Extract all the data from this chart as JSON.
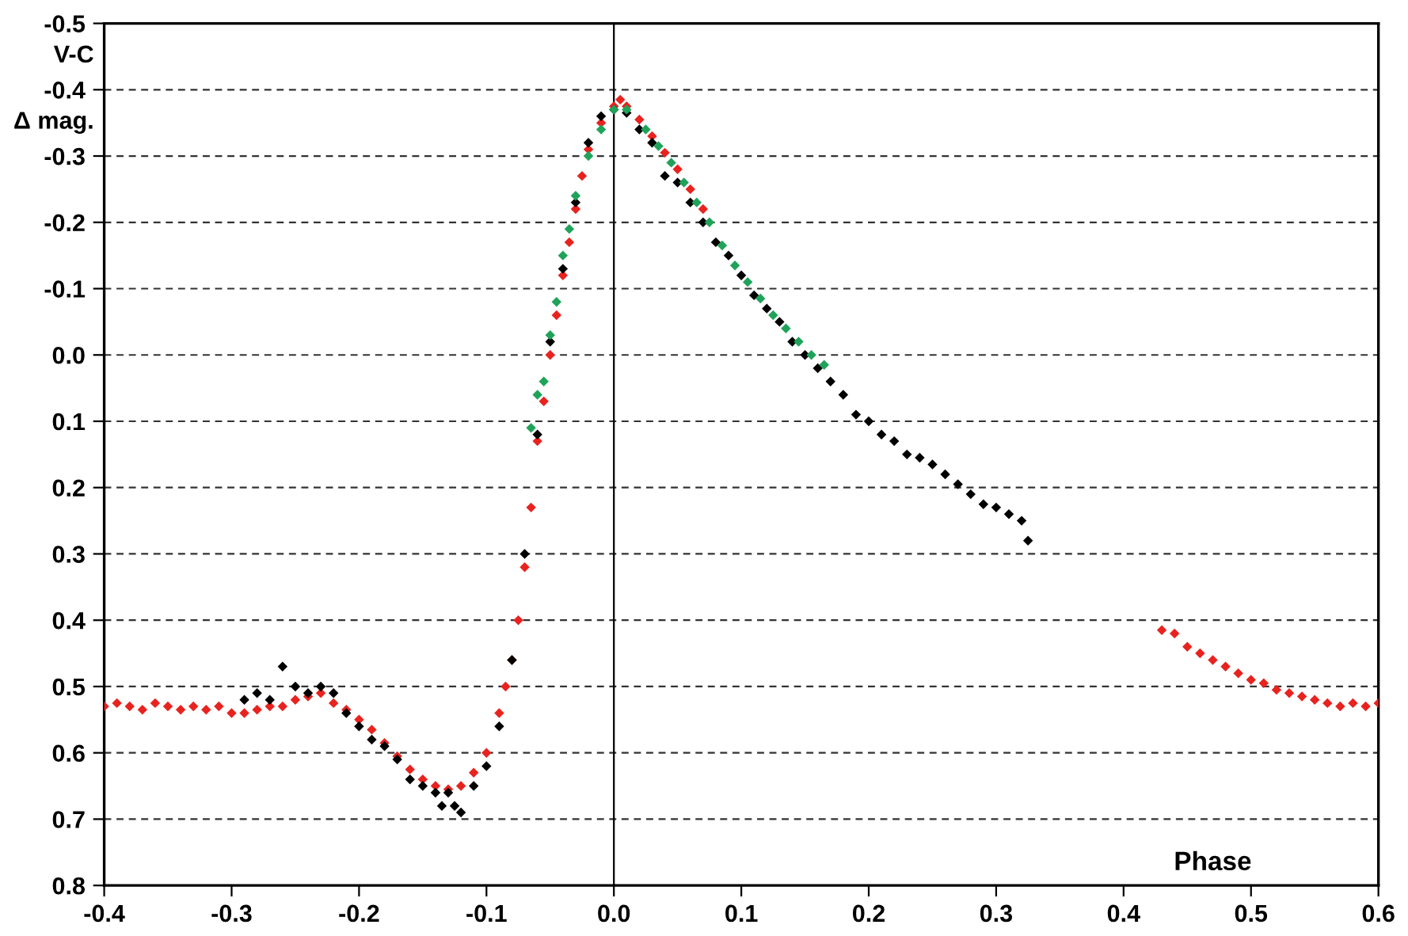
{
  "chart_data": {
    "type": "scatter",
    "xlabel": "Phase",
    "ylabel": "V-C\nΔ mag.",
    "xlim": [
      -0.4,
      0.6
    ],
    "xticks": [
      {
        "value": -0.4,
        "label": "-0.4"
      },
      {
        "value": -0.3,
        "label": "-0.3"
      },
      {
        "value": -0.2,
        "label": "-0.2"
      },
      {
        "value": -0.1,
        "label": "-0.1"
      },
      {
        "value": 0.0,
        "label": "0.0"
      },
      {
        "value": 0.1,
        "label": "0.1"
      },
      {
        "value": 0.2,
        "label": "0.2"
      },
      {
        "value": 0.3,
        "label": "0.3"
      },
      {
        "value": 0.4,
        "label": "0.4"
      },
      {
        "value": 0.5,
        "label": "0.5"
      },
      {
        "value": 0.6,
        "label": "0.6"
      }
    ],
    "ylim": [
      0.8,
      -0.5
    ],
    "yticks": [
      {
        "value": -0.5,
        "label": "-0.5"
      },
      {
        "value": -0.4,
        "label": "-0.4"
      },
      {
        "value": -0.3,
        "label": "-0.3"
      },
      {
        "value": -0.2,
        "label": "-0.2"
      },
      {
        "value": -0.1,
        "label": "-0.1"
      },
      {
        "value": 0.0,
        "label": "0.0"
      },
      {
        "value": 0.1,
        "label": "0.1"
      },
      {
        "value": 0.2,
        "label": "0.2"
      },
      {
        "value": 0.3,
        "label": "0.3"
      },
      {
        "value": 0.4,
        "label": "0.4"
      },
      {
        "value": 0.5,
        "label": "0.5"
      },
      {
        "value": 0.6,
        "label": "0.6"
      },
      {
        "value": 0.7,
        "label": "0.7"
      },
      {
        "value": 0.8,
        "label": "0.8"
      }
    ],
    "grid": "y",
    "marker": "diamond",
    "ref_lines": [
      {
        "axis": "x",
        "value": 0.0,
        "color": "#000000",
        "line_style": "solid"
      }
    ],
    "series": [
      {
        "color": "#e8231f",
        "x": [
          -0.4,
          -0.39,
          -0.38,
          -0.37,
          -0.36,
          -0.35,
          -0.34,
          -0.33,
          -0.32,
          -0.31,
          -0.3,
          -0.29,
          -0.28,
          -0.27,
          -0.26,
          -0.25,
          -0.24,
          -0.23,
          -0.22,
          -0.21,
          -0.2,
          -0.19,
          -0.18,
          -0.17,
          -0.16,
          -0.15,
          -0.14,
          -0.13,
          -0.12,
          -0.11,
          -0.1,
          -0.09,
          -0.085,
          -0.08,
          -0.075,
          -0.07,
          -0.065,
          -0.06,
          -0.055,
          -0.05,
          -0.045,
          -0.04,
          -0.035,
          -0.03,
          -0.025,
          -0.02,
          -0.01,
          0.0,
          0.005,
          0.01,
          0.02,
          0.03,
          0.04,
          0.05,
          0.06,
          0.07,
          0.43,
          0.44,
          0.45,
          0.46,
          0.47,
          0.48,
          0.49,
          0.5,
          0.51,
          0.52,
          0.53,
          0.54,
          0.55,
          0.56,
          0.57,
          0.58,
          0.59,
          0.6
        ],
        "values": [
          0.53,
          0.525,
          0.53,
          0.535,
          0.525,
          0.53,
          0.535,
          0.53,
          0.535,
          0.53,
          0.54,
          0.54,
          0.535,
          0.53,
          0.53,
          0.52,
          0.515,
          0.51,
          0.525,
          0.535,
          0.55,
          0.565,
          0.585,
          0.605,
          0.625,
          0.64,
          0.65,
          0.655,
          0.65,
          0.63,
          0.6,
          0.54,
          0.5,
          0.46,
          0.4,
          0.32,
          0.23,
          0.13,
          0.07,
          0.0,
          -0.06,
          -0.12,
          -0.17,
          -0.22,
          -0.27,
          -0.31,
          -0.35,
          -0.375,
          -0.385,
          -0.375,
          -0.355,
          -0.33,
          -0.305,
          -0.28,
          -0.25,
          -0.22,
          0.415,
          0.42,
          0.44,
          0.45,
          0.46,
          0.47,
          0.48,
          0.49,
          0.495,
          0.505,
          0.51,
          0.515,
          0.52,
          0.525,
          0.53,
          0.525,
          0.53,
          0.525
        ]
      },
      {
        "color": "#000000",
        "x": [
          -0.29,
          -0.28,
          -0.27,
          -0.26,
          -0.25,
          -0.24,
          -0.23,
          -0.22,
          -0.21,
          -0.2,
          -0.19,
          -0.18,
          -0.17,
          -0.16,
          -0.15,
          -0.14,
          -0.135,
          -0.13,
          -0.125,
          -0.12,
          -0.11,
          -0.1,
          -0.09,
          -0.08,
          -0.07,
          -0.06,
          -0.05,
          -0.04,
          -0.03,
          -0.02,
          -0.01,
          0.0,
          0.01,
          0.02,
          0.03,
          0.04,
          0.05,
          0.06,
          0.07,
          0.08,
          0.09,
          0.1,
          0.11,
          0.12,
          0.13,
          0.14,
          0.15,
          0.16,
          0.17,
          0.18,
          0.19,
          0.2,
          0.21,
          0.22,
          0.23,
          0.24,
          0.25,
          0.26,
          0.27,
          0.28,
          0.29,
          0.3,
          0.31,
          0.32,
          0.325
        ],
        "values": [
          0.52,
          0.51,
          0.52,
          0.47,
          0.5,
          0.51,
          0.5,
          0.51,
          0.54,
          0.56,
          0.58,
          0.59,
          0.61,
          0.64,
          0.65,
          0.66,
          0.68,
          0.66,
          0.68,
          0.69,
          0.65,
          0.62,
          0.56,
          0.46,
          0.3,
          0.12,
          -0.02,
          -0.13,
          -0.23,
          -0.32,
          -0.36,
          -0.37,
          -0.365,
          -0.34,
          -0.32,
          -0.27,
          -0.26,
          -0.23,
          -0.2,
          -0.17,
          -0.15,
          -0.12,
          -0.09,
          -0.07,
          -0.05,
          -0.02,
          0.0,
          0.02,
          0.04,
          0.06,
          0.09,
          0.1,
          0.12,
          0.13,
          0.15,
          0.155,
          0.165,
          0.18,
          0.195,
          0.21,
          0.225,
          0.23,
          0.24,
          0.25,
          0.28
        ]
      },
      {
        "color": "#1fa35a",
        "x": [
          -0.065,
          -0.06,
          -0.055,
          -0.05,
          -0.045,
          -0.04,
          -0.035,
          -0.03,
          -0.02,
          -0.01,
          0.0,
          0.01,
          0.025,
          0.035,
          0.045,
          0.055,
          0.065,
          0.075,
          0.085,
          0.095,
          0.105,
          0.115,
          0.125,
          0.135,
          0.145,
          0.155,
          0.165
        ],
        "values": [
          0.11,
          0.06,
          0.04,
          -0.03,
          -0.08,
          -0.15,
          -0.19,
          -0.24,
          -0.3,
          -0.34,
          -0.37,
          -0.37,
          -0.34,
          -0.315,
          -0.29,
          -0.26,
          -0.23,
          -0.2,
          -0.165,
          -0.135,
          -0.11,
          -0.085,
          -0.06,
          -0.04,
          -0.02,
          0.0,
          0.015
        ]
      }
    ]
  }
}
